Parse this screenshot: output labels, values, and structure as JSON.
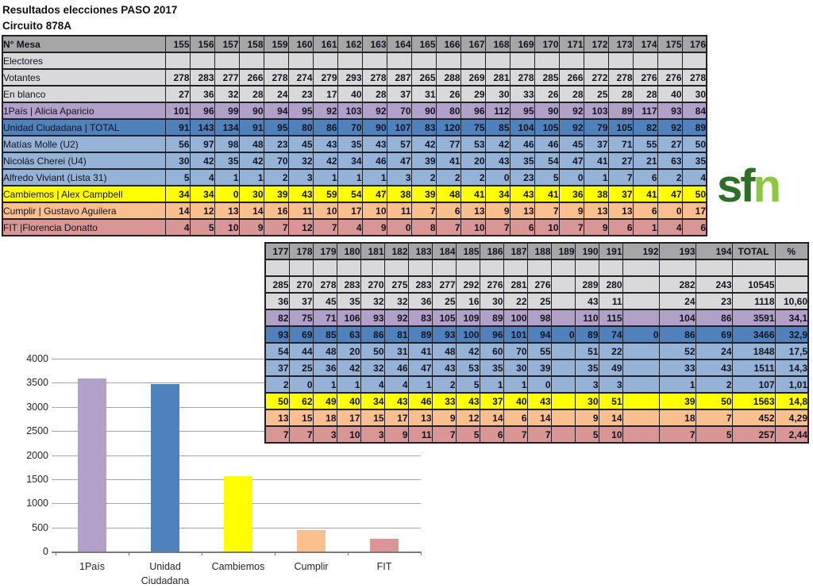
{
  "page": {
    "title": "Resultados elecciones PASO 2017",
    "subtitle": "Circuito 878A"
  },
  "logo": {
    "text_dark": "sf",
    "text_light": "n",
    "color_dark": "#2e6e27",
    "color_light": "#8dc63f"
  },
  "colors": {
    "header": "#a6a6a6",
    "gray": "#d9d9d9",
    "purple": "#b1a0c7",
    "blue_dark": "#4f81bd",
    "blue": "#95b3d7",
    "yellow": "#ffff00",
    "orange": "#fabf8f",
    "red": "#d99694"
  },
  "table1": {
    "header_label": "N° Mesa",
    "mesas": [
      155,
      156,
      157,
      158,
      159,
      160,
      161,
      162,
      163,
      164,
      165,
      166,
      167,
      168,
      169,
      170,
      171,
      172,
      173,
      174,
      175,
      176
    ]
  },
  "table2": {
    "mesas": [
      177,
      178,
      179,
      180,
      181,
      182,
      183,
      184,
      185,
      186,
      187,
      188,
      189,
      190,
      191,
      192,
      193,
      194
    ],
    "total_label": "TOTAL",
    "pct_label": "%"
  },
  "rows": [
    {
      "key": "electores",
      "label": "Electores",
      "style": "gray",
      "t1": [],
      "t2": [],
      "total": "",
      "pct": ""
    },
    {
      "key": "votantes",
      "label": "Votantes",
      "style": "gray",
      "t1": [
        278,
        283,
        277,
        266,
        278,
        274,
        279,
        293,
        278,
        287,
        265,
        288,
        269,
        281,
        278,
        285,
        266,
        272,
        278,
        276,
        276,
        278
      ],
      "t2": [
        285,
        270,
        278,
        283,
        270,
        275,
        283,
        277,
        292,
        276,
        281,
        276,
        "",
        289,
        280,
        "",
        282,
        243
      ],
      "total": 10545,
      "pct": ""
    },
    {
      "key": "en-blanco",
      "label": "En blanco",
      "style": "gray",
      "t1": [
        27,
        36,
        32,
        28,
        24,
        23,
        17,
        40,
        28,
        37,
        31,
        26,
        29,
        30,
        33,
        26,
        28,
        25,
        28,
        28,
        40,
        30
      ],
      "t2": [
        36,
        37,
        45,
        35,
        32,
        32,
        36,
        25,
        16,
        30,
        22,
        25,
        "",
        43,
        11,
        "",
        24,
        23
      ],
      "total": 1118,
      "pct": "10,60"
    },
    {
      "key": "1pais",
      "label": "1País | Alicia Aparicio",
      "style": "purple",
      "t1": [
        101,
        96,
        99,
        90,
        94,
        95,
        92,
        103,
        92,
        70,
        90,
        80,
        96,
        112,
        95,
        90,
        92,
        103,
        89,
        117,
        93,
        84
      ],
      "t2": [
        82,
        75,
        71,
        106,
        93,
        92,
        83,
        105,
        109,
        89,
        100,
        98,
        "",
        110,
        115,
        "",
        104,
        86
      ],
      "total": 3591,
      "pct": "34,1"
    },
    {
      "key": "unidad-ciudadana",
      "label": "Unidad Ciudadana | TOTAL",
      "style": "blue_dark",
      "t1": [
        91,
        143,
        134,
        91,
        95,
        80,
        86,
        70,
        90,
        107,
        83,
        120,
        75,
        85,
        104,
        105,
        92,
        79,
        105,
        82,
        92,
        89
      ],
      "t2": [
        93,
        69,
        85,
        63,
        86,
        81,
        89,
        93,
        100,
        96,
        101,
        94,
        0,
        89,
        74,
        0,
        86,
        69
      ],
      "total": 3466,
      "pct": "32,9"
    },
    {
      "key": "molle",
      "label": "Matías Molle (U2)",
      "style": "blue",
      "t1": [
        56,
        97,
        98,
        48,
        23,
        45,
        43,
        35,
        43,
        57,
        42,
        77,
        53,
        42,
        46,
        46,
        45,
        37,
        71,
        55,
        27,
        50
      ],
      "t2": [
        54,
        44,
        48,
        20,
        50,
        31,
        41,
        48,
        42,
        60,
        70,
        55,
        "",
        51,
        22,
        "",
        52,
        24
      ],
      "total": 1848,
      "pct": "17,5"
    },
    {
      "key": "cherei",
      "label": "Nicolás Cherei (U4)",
      "style": "blue",
      "t1": [
        30,
        42,
        35,
        42,
        70,
        32,
        42,
        34,
        46,
        47,
        39,
        41,
        20,
        43,
        35,
        54,
        47,
        41,
        27,
        21,
        63,
        35
      ],
      "t2": [
        37,
        25,
        36,
        42,
        32,
        46,
        47,
        43,
        53,
        35,
        30,
        39,
        "",
        35,
        49,
        "",
        33,
        43
      ],
      "total": 1511,
      "pct": "14,3"
    },
    {
      "key": "viviant",
      "label": "Alfredo Viviant (Lista 31)",
      "style": "blue",
      "t1": [
        5,
        4,
        1,
        1,
        2,
        3,
        1,
        1,
        1,
        3,
        2,
        2,
        2,
        0,
        23,
        5,
        0,
        1,
        7,
        6,
        2,
        4
      ],
      "t2": [
        2,
        0,
        1,
        1,
        4,
        4,
        1,
        2,
        5,
        1,
        1,
        0,
        "",
        3,
        3,
        "",
        1,
        2
      ],
      "total": 107,
      "pct": "1,01"
    },
    {
      "key": "cambiemos",
      "label": "Cambiemos | Alex Campbell",
      "style": "yellow",
      "t1": [
        34,
        34,
        0,
        30,
        39,
        43,
        59,
        54,
        47,
        38,
        39,
        48,
        41,
        34,
        43,
        41,
        36,
        38,
        37,
        41,
        47,
        50
      ],
      "t2": [
        50,
        62,
        49,
        40,
        34,
        43,
        46,
        33,
        43,
        37,
        40,
        43,
        "",
        30,
        51,
        "",
        39,
        50
      ],
      "total": 1563,
      "pct": "14,8"
    },
    {
      "key": "cumplir",
      "label": "Cumplir | Gustavo Aguilera",
      "style": "orange",
      "t1": [
        14,
        12,
        13,
        14,
        16,
        11,
        10,
        17,
        10,
        11,
        7,
        6,
        13,
        9,
        13,
        7,
        9,
        13,
        13,
        6,
        0,
        17
      ],
      "t2": [
        13,
        15,
        18,
        17,
        15,
        17,
        13,
        9,
        12,
        14,
        6,
        14,
        "",
        9,
        14,
        "",
        18,
        7
      ],
      "total": 452,
      "pct": "4,29"
    },
    {
      "key": "fit",
      "label": "FIT |Florencia Donatto",
      "style": "red",
      "t1": [
        4,
        5,
        10,
        9,
        7,
        12,
        7,
        4,
        9,
        0,
        8,
        7,
        10,
        7,
        6,
        10,
        7,
        9,
        6,
        1,
        4,
        6
      ],
      "t2": [
        7,
        7,
        3,
        10,
        3,
        9,
        11,
        7,
        5,
        6,
        7,
        7,
        "",
        5,
        10,
        "",
        7,
        5
      ],
      "total": 257,
      "pct": "2,44"
    }
  ],
  "chart_data": {
    "type": "bar",
    "title": "",
    "categories": [
      "1País",
      "Unidad Ciudadana",
      "Cambiemos",
      "Cumplir",
      "FIT"
    ],
    "values": [
      3591,
      3466,
      1563,
      452,
      257
    ],
    "bar_colors": [
      "#b1a0c7",
      "#4f81bd",
      "#ffff00",
      "#fabf8f",
      "#d99694"
    ],
    "xlabel": "",
    "ylabel": "",
    "ylim": [
      0,
      4000
    ],
    "ytick_step": 500,
    "grid": true,
    "legend": false
  }
}
